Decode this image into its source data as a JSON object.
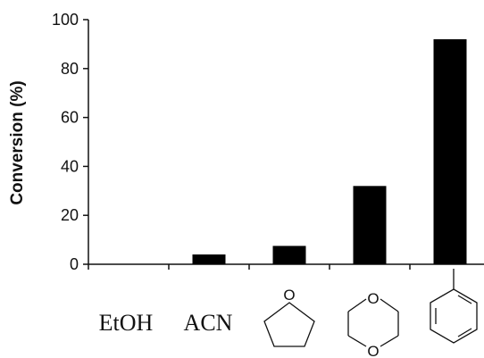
{
  "chart_data": {
    "type": "bar",
    "categories": [
      "EtOH",
      "ACN",
      "",
      "",
      ""
    ],
    "category_structures": [
      "",
      "",
      "tetrahydrofuran",
      "1,4-dioxane",
      "toluene"
    ],
    "values": [
      0,
      4,
      7.5,
      32,
      92
    ],
    "ylabel": "Conversion (%)",
    "xlabel": "",
    "ylim": [
      0,
      100
    ],
    "yticks": [
      "0",
      "20",
      "40",
      "60",
      "80",
      "100"
    ],
    "grid": false,
    "bar_color": "#000000",
    "ring_atom_label": "O"
  }
}
